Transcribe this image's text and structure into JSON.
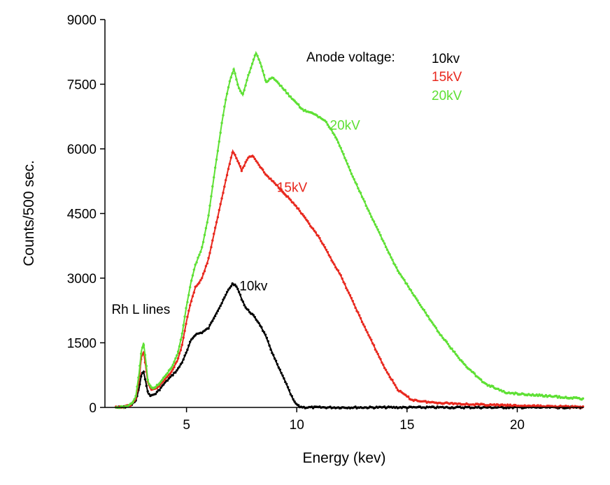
{
  "chart_data": {
    "type": "scatter",
    "title": "",
    "xlabel": "Energy (kev)",
    "ylabel": "Counts/500 sec.",
    "xlim": [
      1.3,
      23
    ],
    "ylim": [
      0,
      9000
    ],
    "x_ticks": [
      5,
      10,
      15,
      20
    ],
    "y_ticks": [
      0,
      1500,
      3000,
      4500,
      6000,
      7500,
      9000
    ],
    "grid": false,
    "series": [
      {
        "name": "10kv",
        "color": "#000000",
        "points": [
          [
            1.8,
            0
          ],
          [
            2.2,
            10
          ],
          [
            2.5,
            60
          ],
          [
            2.7,
            150
          ],
          [
            2.85,
            450
          ],
          [
            2.95,
            750
          ],
          [
            3.05,
            830
          ],
          [
            3.15,
            600
          ],
          [
            3.25,
            330
          ],
          [
            3.4,
            270
          ],
          [
            3.6,
            320
          ],
          [
            3.8,
            430
          ],
          [
            4.0,
            560
          ],
          [
            4.3,
            720
          ],
          [
            4.6,
            880
          ],
          [
            4.8,
            1050
          ],
          [
            5.0,
            1280
          ],
          [
            5.2,
            1560
          ],
          [
            5.4,
            1690
          ],
          [
            5.7,
            1740
          ],
          [
            6.0,
            1840
          ],
          [
            6.3,
            2140
          ],
          [
            6.6,
            2420
          ],
          [
            6.9,
            2730
          ],
          [
            7.1,
            2880
          ],
          [
            7.3,
            2780
          ],
          [
            7.5,
            2520
          ],
          [
            7.7,
            2300
          ],
          [
            8.0,
            2150
          ],
          [
            8.3,
            1950
          ],
          [
            8.6,
            1650
          ],
          [
            8.9,
            1250
          ],
          [
            9.2,
            900
          ],
          [
            9.5,
            580
          ],
          [
            9.7,
            330
          ],
          [
            9.9,
            120
          ],
          [
            10.1,
            20
          ],
          [
            10.4,
            0
          ],
          [
            11,
            0
          ],
          [
            13,
            0
          ],
          [
            15,
            0
          ],
          [
            17,
            0
          ],
          [
            19,
            0
          ],
          [
            21,
            0
          ],
          [
            23,
            0
          ]
        ]
      },
      {
        "name": "15kV",
        "color": "#e8281e",
        "points": [
          [
            1.8,
            0
          ],
          [
            2.2,
            10
          ],
          [
            2.5,
            70
          ],
          [
            2.7,
            200
          ],
          [
            2.85,
            650
          ],
          [
            2.95,
            1150
          ],
          [
            3.05,
            1300
          ],
          [
            3.15,
            950
          ],
          [
            3.25,
            560
          ],
          [
            3.4,
            400
          ],
          [
            3.6,
            430
          ],
          [
            3.8,
            520
          ],
          [
            4.0,
            640
          ],
          [
            4.3,
            820
          ],
          [
            4.6,
            1100
          ],
          [
            4.8,
            1450
          ],
          [
            5.0,
            2000
          ],
          [
            5.2,
            2450
          ],
          [
            5.4,
            2780
          ],
          [
            5.7,
            3000
          ],
          [
            6.0,
            3450
          ],
          [
            6.3,
            4150
          ],
          [
            6.6,
            4850
          ],
          [
            6.9,
            5550
          ],
          [
            7.1,
            5950
          ],
          [
            7.3,
            5750
          ],
          [
            7.5,
            5500
          ],
          [
            7.8,
            5800
          ],
          [
            8.0,
            5850
          ],
          [
            8.3,
            5620
          ],
          [
            8.6,
            5400
          ],
          [
            8.9,
            5250
          ],
          [
            9.3,
            5050
          ],
          [
            10,
            4650
          ],
          [
            11,
            3950
          ],
          [
            12,
            3050
          ],
          [
            13,
            1950
          ],
          [
            14,
            900
          ],
          [
            14.6,
            400
          ],
          [
            15.2,
            180
          ],
          [
            16,
            120
          ],
          [
            18,
            70
          ],
          [
            20,
            40
          ],
          [
            22,
            20
          ],
          [
            23,
            10
          ]
        ]
      },
      {
        "name": "20kV",
        "color": "#5ee034",
        "points": [
          [
            1.8,
            0
          ],
          [
            2.2,
            10
          ],
          [
            2.5,
            80
          ],
          [
            2.7,
            250
          ],
          [
            2.85,
            800
          ],
          [
            2.95,
            1300
          ],
          [
            3.05,
            1500
          ],
          [
            3.15,
            1100
          ],
          [
            3.25,
            600
          ],
          [
            3.4,
            450
          ],
          [
            3.6,
            480
          ],
          [
            3.8,
            580
          ],
          [
            4.0,
            720
          ],
          [
            4.3,
            900
          ],
          [
            4.6,
            1250
          ],
          [
            4.8,
            1700
          ],
          [
            5.0,
            2350
          ],
          [
            5.2,
            2900
          ],
          [
            5.4,
            3300
          ],
          [
            5.7,
            3700
          ],
          [
            6.0,
            4450
          ],
          [
            6.3,
            5550
          ],
          [
            6.6,
            6600
          ],
          [
            6.8,
            7200
          ],
          [
            7.0,
            7650
          ],
          [
            7.15,
            7850
          ],
          [
            7.35,
            7450
          ],
          [
            7.55,
            7250
          ],
          [
            7.8,
            7700
          ],
          [
            8.0,
            8000
          ],
          [
            8.15,
            8230
          ],
          [
            8.35,
            8000
          ],
          [
            8.6,
            7550
          ],
          [
            8.9,
            7650
          ],
          [
            9.3,
            7450
          ],
          [
            9.8,
            7150
          ],
          [
            10.3,
            6900
          ],
          [
            10.8,
            6800
          ],
          [
            11.3,
            6650
          ],
          [
            11.8,
            6250
          ],
          [
            12.5,
            5400
          ],
          [
            13.5,
            4300
          ],
          [
            14.5,
            3250
          ],
          [
            15.5,
            2450
          ],
          [
            16.5,
            1700
          ],
          [
            17.5,
            1050
          ],
          [
            18.5,
            560
          ],
          [
            19.5,
            340
          ],
          [
            20.5,
            300
          ],
          [
            21.5,
            260
          ],
          [
            22.5,
            220
          ],
          [
            23,
            200
          ]
        ]
      }
    ],
    "legend_title": "Anode voltage:",
    "legend_entries": [
      "10kv",
      "15kV",
      "20kV"
    ],
    "annotations": [
      {
        "text": "20kV",
        "x": 11.5,
        "y": 6450,
        "color": "#5ee034"
      },
      {
        "text": "15kV",
        "x": 9.1,
        "y": 5000,
        "color": "#e8281e"
      },
      {
        "text": "10kv",
        "x": 7.4,
        "y": 2720,
        "color": "#000000"
      },
      {
        "text": "Rh L lines",
        "x": 1.6,
        "y": 2170,
        "color": "#000000"
      }
    ]
  }
}
